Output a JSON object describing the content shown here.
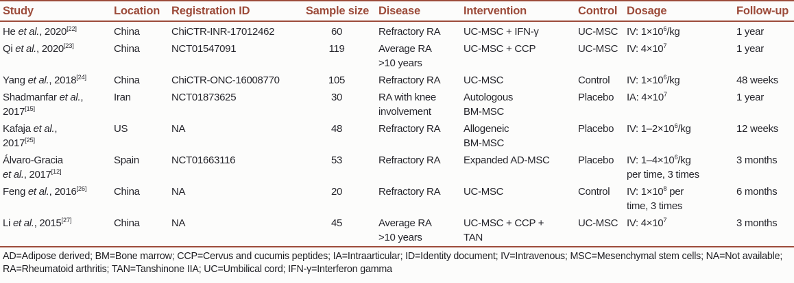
{
  "accent_color": "#9c4b3a",
  "table": {
    "columns": [
      {
        "key": "study",
        "label": "Study"
      },
      {
        "key": "location",
        "label": "Location"
      },
      {
        "key": "registration_id",
        "label": "Registration ID"
      },
      {
        "key": "sample_size",
        "label": "Sample size"
      },
      {
        "key": "disease",
        "label": "Disease"
      },
      {
        "key": "intervention",
        "label": "Intervention"
      },
      {
        "key": "control",
        "label": "Control"
      },
      {
        "key": "dosage",
        "label": "Dosage"
      },
      {
        "key": "follow_up",
        "label": "Follow-up"
      }
    ],
    "rows": [
      {
        "cells": [
          [
            {
              "t": "He "
            },
            {
              "t": "et al.",
              "i": true
            },
            {
              "t": ", 2020"
            },
            {
              "t": "[22]",
              "sup": true
            }
          ],
          "China",
          "ChiCTR-INR-17012462",
          "60",
          "Refractory RA",
          "UC-MSC + IFN-γ",
          "UC-MSC",
          [
            {
              "t": "IV: 1×10"
            },
            {
              "t": "6",
              "sup": true
            },
            {
              "t": "/kg"
            }
          ],
          "1 year"
        ]
      },
      {
        "cells": [
          [
            {
              "t": "Qi "
            },
            {
              "t": "et al.",
              "i": true
            },
            {
              "t": ", 2020"
            },
            {
              "t": "[23]",
              "sup": true
            }
          ],
          "China",
          "NCT01547091",
          "119",
          "Average RA\n>10 years",
          "UC-MSC + CCP",
          "UC-MSC",
          [
            {
              "t": "IV: 4×10"
            },
            {
              "t": "7",
              "sup": true
            }
          ],
          "1 year"
        ]
      },
      {
        "cells": [
          [
            {
              "t": "Yang "
            },
            {
              "t": "et al.",
              "i": true
            },
            {
              "t": ", 2018"
            },
            {
              "t": "[24]",
              "sup": true
            }
          ],
          "China",
          "ChiCTR-ONC-16008770",
          "105",
          "Refractory RA",
          "UC-MSC",
          "Control",
          [
            {
              "t": "IV: 1×10"
            },
            {
              "t": "6",
              "sup": true
            },
            {
              "t": "/kg"
            }
          ],
          "48 weeks"
        ]
      },
      {
        "cells": [
          [
            {
              "t": "Shadmanfar "
            },
            {
              "t": "et al.",
              "i": true
            },
            {
              "t": ",\n2017"
            },
            {
              "t": "[15]",
              "sup": true
            }
          ],
          "Iran",
          "NCT01873625",
          "30",
          "RA with knee\ninvolvement",
          "Autologous\nBM-MSC",
          "Placebo",
          [
            {
              "t": "IA: 4×10"
            },
            {
              "t": "7",
              "sup": true
            }
          ],
          "1 year"
        ]
      },
      {
        "cells": [
          [
            {
              "t": "Kafaja "
            },
            {
              "t": "et al.",
              "i": true
            },
            {
              "t": ",\n2017"
            },
            {
              "t": "[25]",
              "sup": true
            }
          ],
          "US",
          "NA",
          "48",
          "Refractory RA",
          "Allogeneic\nBM-MSC",
          "Placebo",
          [
            {
              "t": "IV: 1–2×10"
            },
            {
              "t": "6",
              "sup": true
            },
            {
              "t": "/kg"
            }
          ],
          "12 weeks"
        ]
      },
      {
        "cells": [
          [
            {
              "t": "Álvaro-Gracia\n"
            },
            {
              "t": "et al.",
              "i": true
            },
            {
              "t": ", 2017"
            },
            {
              "t": "[12]",
              "sup": true
            }
          ],
          "Spain",
          "NCT01663116",
          "53",
          "Refractory RA",
          "Expanded AD-MSC",
          "Placebo",
          [
            {
              "t": "IV: 1–4×10"
            },
            {
              "t": "6",
              "sup": true
            },
            {
              "t": "/kg\nper time, 3 times"
            }
          ],
          "3 months"
        ]
      },
      {
        "cells": [
          [
            {
              "t": "Feng "
            },
            {
              "t": "et al.",
              "i": true
            },
            {
              "t": ", 2016"
            },
            {
              "t": "[26]",
              "sup": true
            }
          ],
          "China",
          "NA",
          "20",
          "Refractory RA",
          "UC-MSC",
          "Control",
          [
            {
              "t": "IV: 1×10"
            },
            {
              "t": "8",
              "sup": true
            },
            {
              "t": " per\ntime, 3 times"
            }
          ],
          "6 months"
        ]
      },
      {
        "cells": [
          [
            {
              "t": "Li "
            },
            {
              "t": "et al.",
              "i": true
            },
            {
              "t": ", 2015"
            },
            {
              "t": "[27]",
              "sup": true
            }
          ],
          "China",
          "NA",
          "45",
          "Average RA\n>10 years",
          "UC-MSC + CCP +\nTAN",
          "UC-MSC",
          [
            {
              "t": "IV: 4×10"
            },
            {
              "t": "7",
              "sup": true
            }
          ],
          "3 months"
        ]
      }
    ]
  },
  "footnote": "AD=Adipose derived; BM=Bone marrow; CCP=Cervus and cucumis peptides; IA=Intraarticular; ID=Identity document; IV=Intravenous; MSC=Mesenchymal stem cells; NA=Not available; RA=Rheumatoid arthritis; TAN=Tanshinone IIA; UC=Umbilical cord; IFN-γ=Interferon gamma"
}
